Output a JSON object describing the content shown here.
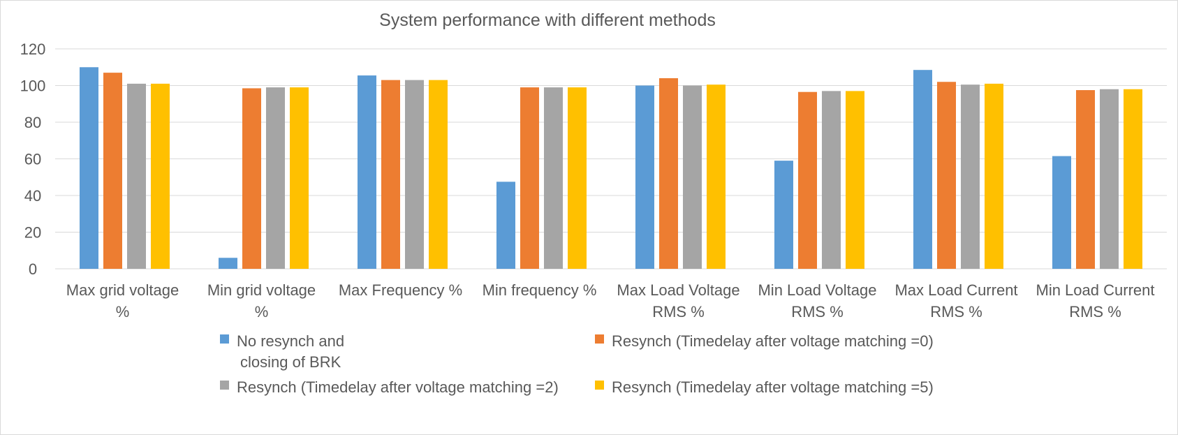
{
  "chart_data": {
    "type": "bar",
    "title": "System performance with different  methods",
    "xlabel": "",
    "ylabel": "",
    "ylim": [
      0,
      120
    ],
    "yticks": [
      0,
      20,
      40,
      60,
      80,
      100,
      120
    ],
    "grid": true,
    "legend_position": "bottom",
    "categories": [
      [
        "Max grid voltage",
        "%"
      ],
      [
        "Min grid voltage",
        "%"
      ],
      [
        "Max Frequency  %"
      ],
      [
        "Min frequency %"
      ],
      [
        "Max Load Voltage",
        "RMS  %"
      ],
      [
        "Min Load Voltage",
        "RMS %"
      ],
      [
        "Max Load Current",
        "RMS %"
      ],
      [
        "Min Load Current",
        "RMS %"
      ]
    ],
    "series": [
      {
        "name": [
          "No resynch and",
          "closing of BRK"
        ],
        "color": "#5b9bd5",
        "values": [
          110,
          6,
          105.5,
          47.5,
          100,
          59,
          108.5,
          61.5
        ]
      },
      {
        "name": [
          "Resynch (Timedelay after voltage matching =0)"
        ],
        "color": "#ed7d31",
        "values": [
          107,
          98.5,
          103,
          99,
          104,
          96.5,
          102,
          97.5
        ]
      },
      {
        "name": [
          "Resynch (Timedelay after voltage matching =2)"
        ],
        "color": "#a5a5a5",
        "values": [
          101,
          99,
          103,
          99,
          100,
          97,
          100.5,
          98
        ]
      },
      {
        "name": [
          "Resynch (Timedelay after voltage matching =5)"
        ],
        "color": "#ffc000",
        "values": [
          101,
          99,
          103,
          99,
          100.5,
          97,
          101,
          98
        ]
      }
    ]
  }
}
